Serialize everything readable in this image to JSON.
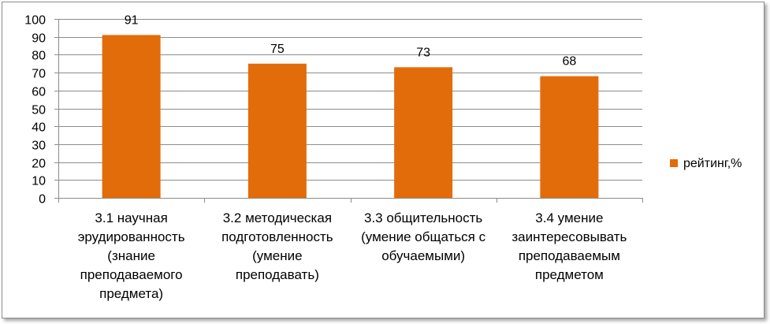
{
  "chart_data": {
    "type": "bar",
    "categories": [
      [
        "3.1 научная",
        "эрудированность",
        "(знание",
        "преподаваемого",
        "предмета)"
      ],
      [
        "3.2 методическая",
        "подготовленность",
        "(умение",
        "преподавать)"
      ],
      [
        "3.3 общительность",
        "(умение общаться с",
        "обучаемыми)"
      ],
      [
        "3.4 умение",
        "заинтересовывать",
        "преподаваемым",
        "предметом"
      ]
    ],
    "series": [
      {
        "name": "рейтинг,%",
        "values": [
          91,
          75,
          73,
          68
        ],
        "color": "#e36c0a"
      }
    ],
    "ylim": [
      0,
      100
    ],
    "yticks": [
      0,
      10,
      20,
      30,
      40,
      50,
      60,
      70,
      80,
      90,
      100
    ],
    "grid": true,
    "legend": "right"
  }
}
